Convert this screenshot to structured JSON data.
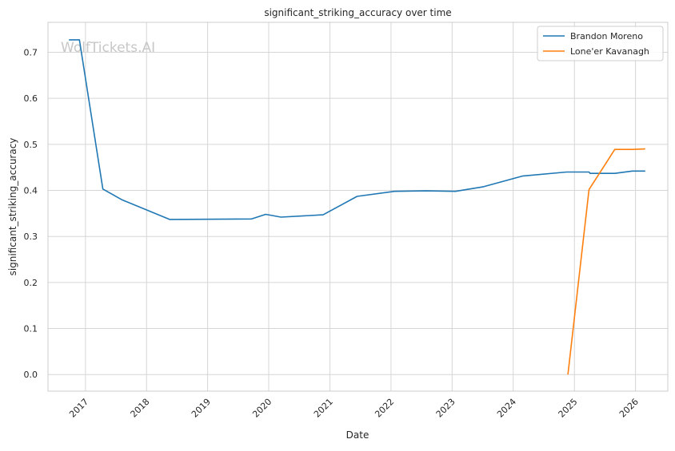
{
  "watermark": "WolfTickets.AI",
  "chart_data": {
    "type": "line",
    "title": "significant_striking_accuracy over time",
    "xlabel": "Date",
    "ylabel": "significant_striking_accuracy",
    "x_tick_labels": [
      "2017",
      "2018",
      "2019",
      "2020",
      "2021",
      "2022",
      "2023",
      "2024",
      "2025",
      "2026"
    ],
    "y_tick_labels": [
      "0.0",
      "0.1",
      "0.2",
      "0.3",
      "0.4",
      "0.5",
      "0.6",
      "0.7"
    ],
    "y_ticks": [
      0.0,
      0.1,
      0.2,
      0.3,
      0.4,
      0.5,
      0.6,
      0.7
    ],
    "xlim": [
      "2016-05-22",
      "2026-07-13"
    ],
    "ylim": [
      -0.036,
      0.765
    ],
    "grid": true,
    "legend_position": "top-right",
    "series": [
      {
        "name": "Brandon Moreno",
        "color": "#1f77b4",
        "points": [
          [
            "2016-09-24",
            0.727
          ],
          [
            "2016-11-26",
            0.727
          ],
          [
            "2017-04-15",
            0.403
          ],
          [
            "2017-08-05",
            0.38
          ],
          [
            "2018-05-19",
            0.337
          ],
          [
            "2019-09-21",
            0.338
          ],
          [
            "2019-12-14",
            0.348
          ],
          [
            "2020-03-14",
            0.342
          ],
          [
            "2020-11-21",
            0.347
          ],
          [
            "2021-06-12",
            0.387
          ],
          [
            "2022-01-22",
            0.398
          ],
          [
            "2022-07-30",
            0.399
          ],
          [
            "2023-01-21",
            0.398
          ],
          [
            "2023-07-08",
            0.408
          ],
          [
            "2024-02-24",
            0.431
          ],
          [
            "2024-11-16",
            0.44
          ],
          [
            "2025-03-29",
            0.44
          ],
          [
            "2025-04-05",
            0.437
          ],
          [
            "2025-08-30",
            0.437
          ],
          [
            "2025-12-13",
            0.442
          ],
          [
            "2026-02-28",
            0.442
          ]
        ]
      },
      {
        "name": "Lone'er Kavanagh",
        "color": "#ff7f0e",
        "points": [
          [
            "2024-11-23",
            0.0
          ],
          [
            "2025-03-29",
            0.402
          ],
          [
            "2025-08-30",
            0.489
          ],
          [
            "2025-12-13",
            0.489
          ],
          [
            "2026-02-28",
            0.49
          ]
        ]
      }
    ]
  }
}
